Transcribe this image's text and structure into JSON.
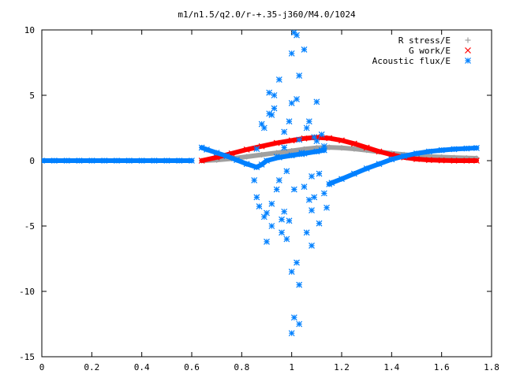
{
  "chart_data": {
    "type": "scatter",
    "title": "m1/n1.5/q2.0/r-+.35-j360/M4.0/1024",
    "xlabel": "",
    "ylabel": "",
    "xlim": [
      0,
      1.8
    ],
    "ylim": [
      -15,
      10
    ],
    "x_ticks": [
      0,
      0.2,
      0.4,
      0.6,
      0.8,
      1,
      1.2,
      1.4,
      1.6,
      1.8
    ],
    "x_tick_labels": [
      "0",
      "0.2",
      "0.4",
      "0.6",
      "0.8",
      "1",
      "1.2",
      "1.4",
      "1.6",
      "1.8"
    ],
    "y_ticks": [
      10,
      5,
      0,
      -5,
      -10,
      -15
    ],
    "y_tick_labels": [
      "10",
      "5",
      "0",
      "-5",
      "-10",
      "-15"
    ],
    "grid": false,
    "legend_position": "top-right",
    "series": [
      {
        "name": "R stress/E",
        "marker": "plus",
        "color": "#a0a0a0",
        "x": [
          0.64,
          0.7,
          0.76,
          0.82,
          0.88,
          0.94,
          1.0,
          1.05,
          1.1,
          1.15,
          1.2,
          1.25,
          1.3,
          1.35,
          1.4,
          1.45,
          1.5,
          1.55,
          1.6,
          1.65,
          1.7,
          1.74
        ],
        "y": [
          0.0,
          0.05,
          0.15,
          0.3,
          0.45,
          0.6,
          0.75,
          0.88,
          0.98,
          1.02,
          0.98,
          0.9,
          0.8,
          0.68,
          0.56,
          0.46,
          0.38,
          0.32,
          0.27,
          0.23,
          0.2,
          0.18
        ]
      },
      {
        "name": "G work/E",
        "marker": "x",
        "color": "#ff0000",
        "x": [
          0.64,
          0.7,
          0.76,
          0.82,
          0.88,
          0.94,
          1.0,
          1.05,
          1.1,
          1.15,
          1.2,
          1.25,
          1.3,
          1.35,
          1.4,
          1.45,
          1.5,
          1.55,
          1.6,
          1.65,
          1.7,
          1.74
        ],
        "y": [
          0.0,
          0.25,
          0.55,
          0.85,
          1.1,
          1.35,
          1.55,
          1.7,
          1.78,
          1.72,
          1.55,
          1.3,
          1.0,
          0.7,
          0.45,
          0.25,
          0.12,
          0.05,
          0.02,
          0.0,
          0.0,
          0.0
        ]
      },
      {
        "name": "Acoustic flux/E",
        "marker": "star",
        "color": "#0080ff",
        "x": [
          0.0,
          0.05,
          0.1,
          0.15,
          0.2,
          0.25,
          0.3,
          0.35,
          0.4,
          0.45,
          0.5,
          0.55,
          0.6,
          0.64,
          0.66,
          0.7,
          0.74,
          0.78,
          0.82,
          0.86,
          0.88,
          0.9,
          0.95,
          1.0,
          1.05,
          1.1,
          1.13,
          1.15,
          1.16,
          1.2,
          1.25,
          1.3,
          1.35,
          1.4,
          1.45,
          1.5,
          1.55,
          1.6,
          1.65,
          1.7,
          1.74,
          0.85,
          0.86,
          0.86,
          0.87,
          0.89,
          0.9,
          0.91,
          0.92,
          0.93,
          0.94,
          0.95,
          0.96,
          0.97,
          0.98,
          0.99,
          1.0,
          1.0,
          1.01,
          1.01,
          1.02,
          1.02,
          1.03,
          1.03,
          1.04,
          1.05,
          1.06,
          1.07,
          1.08,
          1.09,
          1.1,
          1.11,
          1.12,
          1.13,
          1.14,
          0.9,
          0.92,
          0.95,
          0.98,
          1.0,
          1.02,
          1.05,
          1.08,
          1.1,
          1.12,
          0.88,
          0.93,
          0.97,
          1.03,
          1.07,
          1.11,
          0.91,
          0.96,
          1.01,
          1.06,
          0.89,
          0.94,
          0.99,
          1.04,
          1.09,
          1.13,
          0.92,
          0.97,
          1.0,
          1.03,
          1.08
        ],
        "y": [
          0.0,
          0.0,
          0.0,
          0.0,
          0.0,
          0.0,
          0.0,
          0.0,
          0.0,
          0.0,
          0.0,
          0.0,
          0.0,
          1.0,
          0.85,
          0.6,
          0.35,
          0.05,
          -0.25,
          -0.5,
          -0.3,
          0.0,
          0.25,
          0.4,
          0.55,
          0.7,
          0.8,
          -1.8,
          -1.7,
          -1.4,
          -1.0,
          -0.6,
          -0.25,
          0.1,
          0.35,
          0.55,
          0.7,
          0.8,
          0.88,
          0.93,
          0.97,
          -1.5,
          -2.8,
          0.9,
          -3.5,
          2.5,
          -4.0,
          5.2,
          -3.3,
          4.0,
          -2.2,
          6.2,
          -4.5,
          1.0,
          -6.0,
          3.0,
          -8.5,
          8.2,
          9.8,
          -12.0,
          9.6,
          -7.8,
          6.5,
          -12.5,
          0.6,
          8.5,
          -5.5,
          3.0,
          -3.8,
          1.8,
          4.5,
          -4.8,
          2.0,
          -2.5,
          -3.6,
          -6.2,
          -5.0,
          -1.5,
          -0.8,
          -13.2,
          4.7,
          -2.0,
          -6.5,
          1.5,
          0.8,
          2.8,
          5.0,
          2.2,
          -9.5,
          -3.0,
          -1.0,
          3.6,
          -5.5,
          -2.2,
          2.5,
          -4.3,
          0.3,
          -4.6,
          0.5,
          -2.8,
          1.1,
          3.5,
          -3.9,
          4.4,
          1.6,
          -1.2
        ]
      }
    ]
  }
}
